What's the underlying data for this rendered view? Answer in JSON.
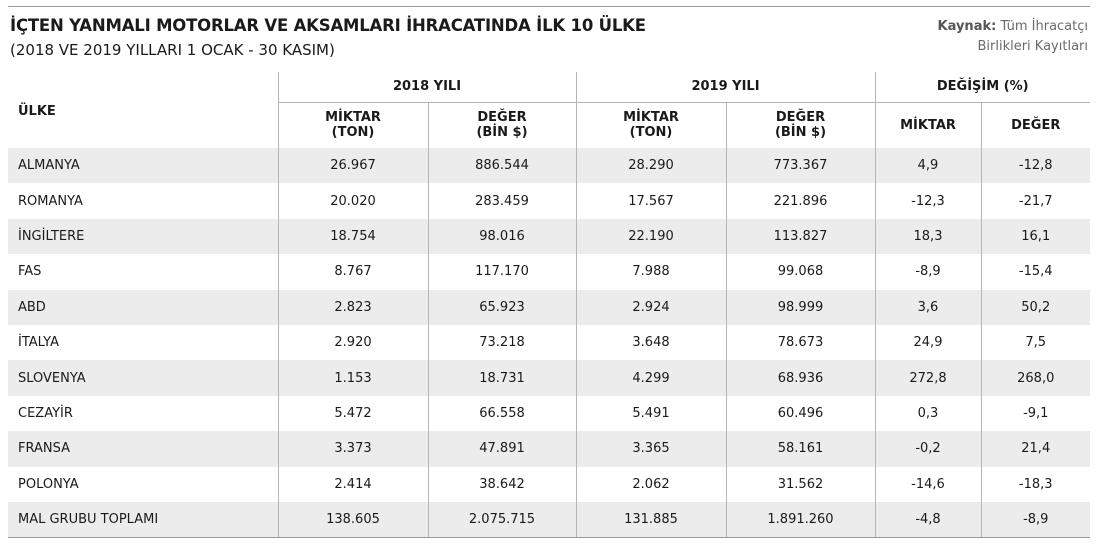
{
  "title": "İÇTEN YANMALI MOTORLAR VE AKSAMLARI İHRACATINDA İLK 10 ÜLKE",
  "subtitle": "(2018 VE 2019 YILLARI 1 OCAK - 30 KASIM)",
  "source": {
    "label": "Kaynak:",
    "line1": "Tüm İhracatçı",
    "line2": "Birlikleri Kayıtları"
  },
  "headers": {
    "country": "ÜLKE",
    "year2018": "2018 YILI",
    "year2019": "2019 YILI",
    "change": "DEĞİŞİM (%)",
    "qty_line1": "MİKTAR",
    "qty_line2": "(TON)",
    "val_line1": "DEĞER",
    "val_line2": "(BİN $)",
    "chg_qty": "MİKTAR",
    "chg_val": "DEĞER"
  },
  "rows": [
    {
      "country": "ALMANYA",
      "q2018": "26.967",
      "v2018": "886.544",
      "q2019": "28.290",
      "v2019": "773.367",
      "cq": "4,9",
      "cv": "-12,8"
    },
    {
      "country": "ROMANYA",
      "q2018": "20.020",
      "v2018": "283.459",
      "q2019": "17.567",
      "v2019": "221.896",
      "cq": "-12,3",
      "cv": "-21,7"
    },
    {
      "country": "İNGİLTERE",
      "q2018": "18.754",
      "v2018": "98.016",
      "q2019": "22.190",
      "v2019": "113.827",
      "cq": "18,3",
      "cv": "16,1"
    },
    {
      "country": "FAS",
      "q2018": "8.767",
      "v2018": "117.170",
      "q2019": "7.988",
      "v2019": "99.068",
      "cq": "-8,9",
      "cv": "-15,4"
    },
    {
      "country": "ABD",
      "q2018": "2.823",
      "v2018": "65.923",
      "q2019": "2.924",
      "v2019": "98.999",
      "cq": "3,6",
      "cv": "50,2"
    },
    {
      "country": "İTALYA",
      "q2018": "2.920",
      "v2018": "73.218",
      "q2019": "3.648",
      "v2019": "78.673",
      "cq": "24,9",
      "cv": "7,5"
    },
    {
      "country": "SLOVENYA",
      "q2018": "1.153",
      "v2018": "18.731",
      "q2019": "4.299",
      "v2019": "68.936",
      "cq": "272,8",
      "cv": "268,0"
    },
    {
      "country": "CEZAYİR",
      "q2018": "5.472",
      "v2018": "66.558",
      "q2019": "5.491",
      "v2019": "60.496",
      "cq": "0,3",
      "cv": "-9,1"
    },
    {
      "country": "FRANSA",
      "q2018": "3.373",
      "v2018": "47.891",
      "q2019": "3.365",
      "v2019": "58.161",
      "cq": "-0,2",
      "cv": "21,4"
    },
    {
      "country": "POLONYA",
      "q2018": "2.414",
      "v2018": "38.642",
      "q2019": "2.062",
      "v2019": "31.562",
      "cq": "-14,6",
      "cv": "-18,3"
    },
    {
      "country": "MAL GRUBU TOPLAMI",
      "q2018": "138.605",
      "v2018": "2.075.715",
      "q2019": "131.885",
      "v2019": "1.891.260",
      "cq": "-4,8",
      "cv": "-8,9"
    }
  ]
}
